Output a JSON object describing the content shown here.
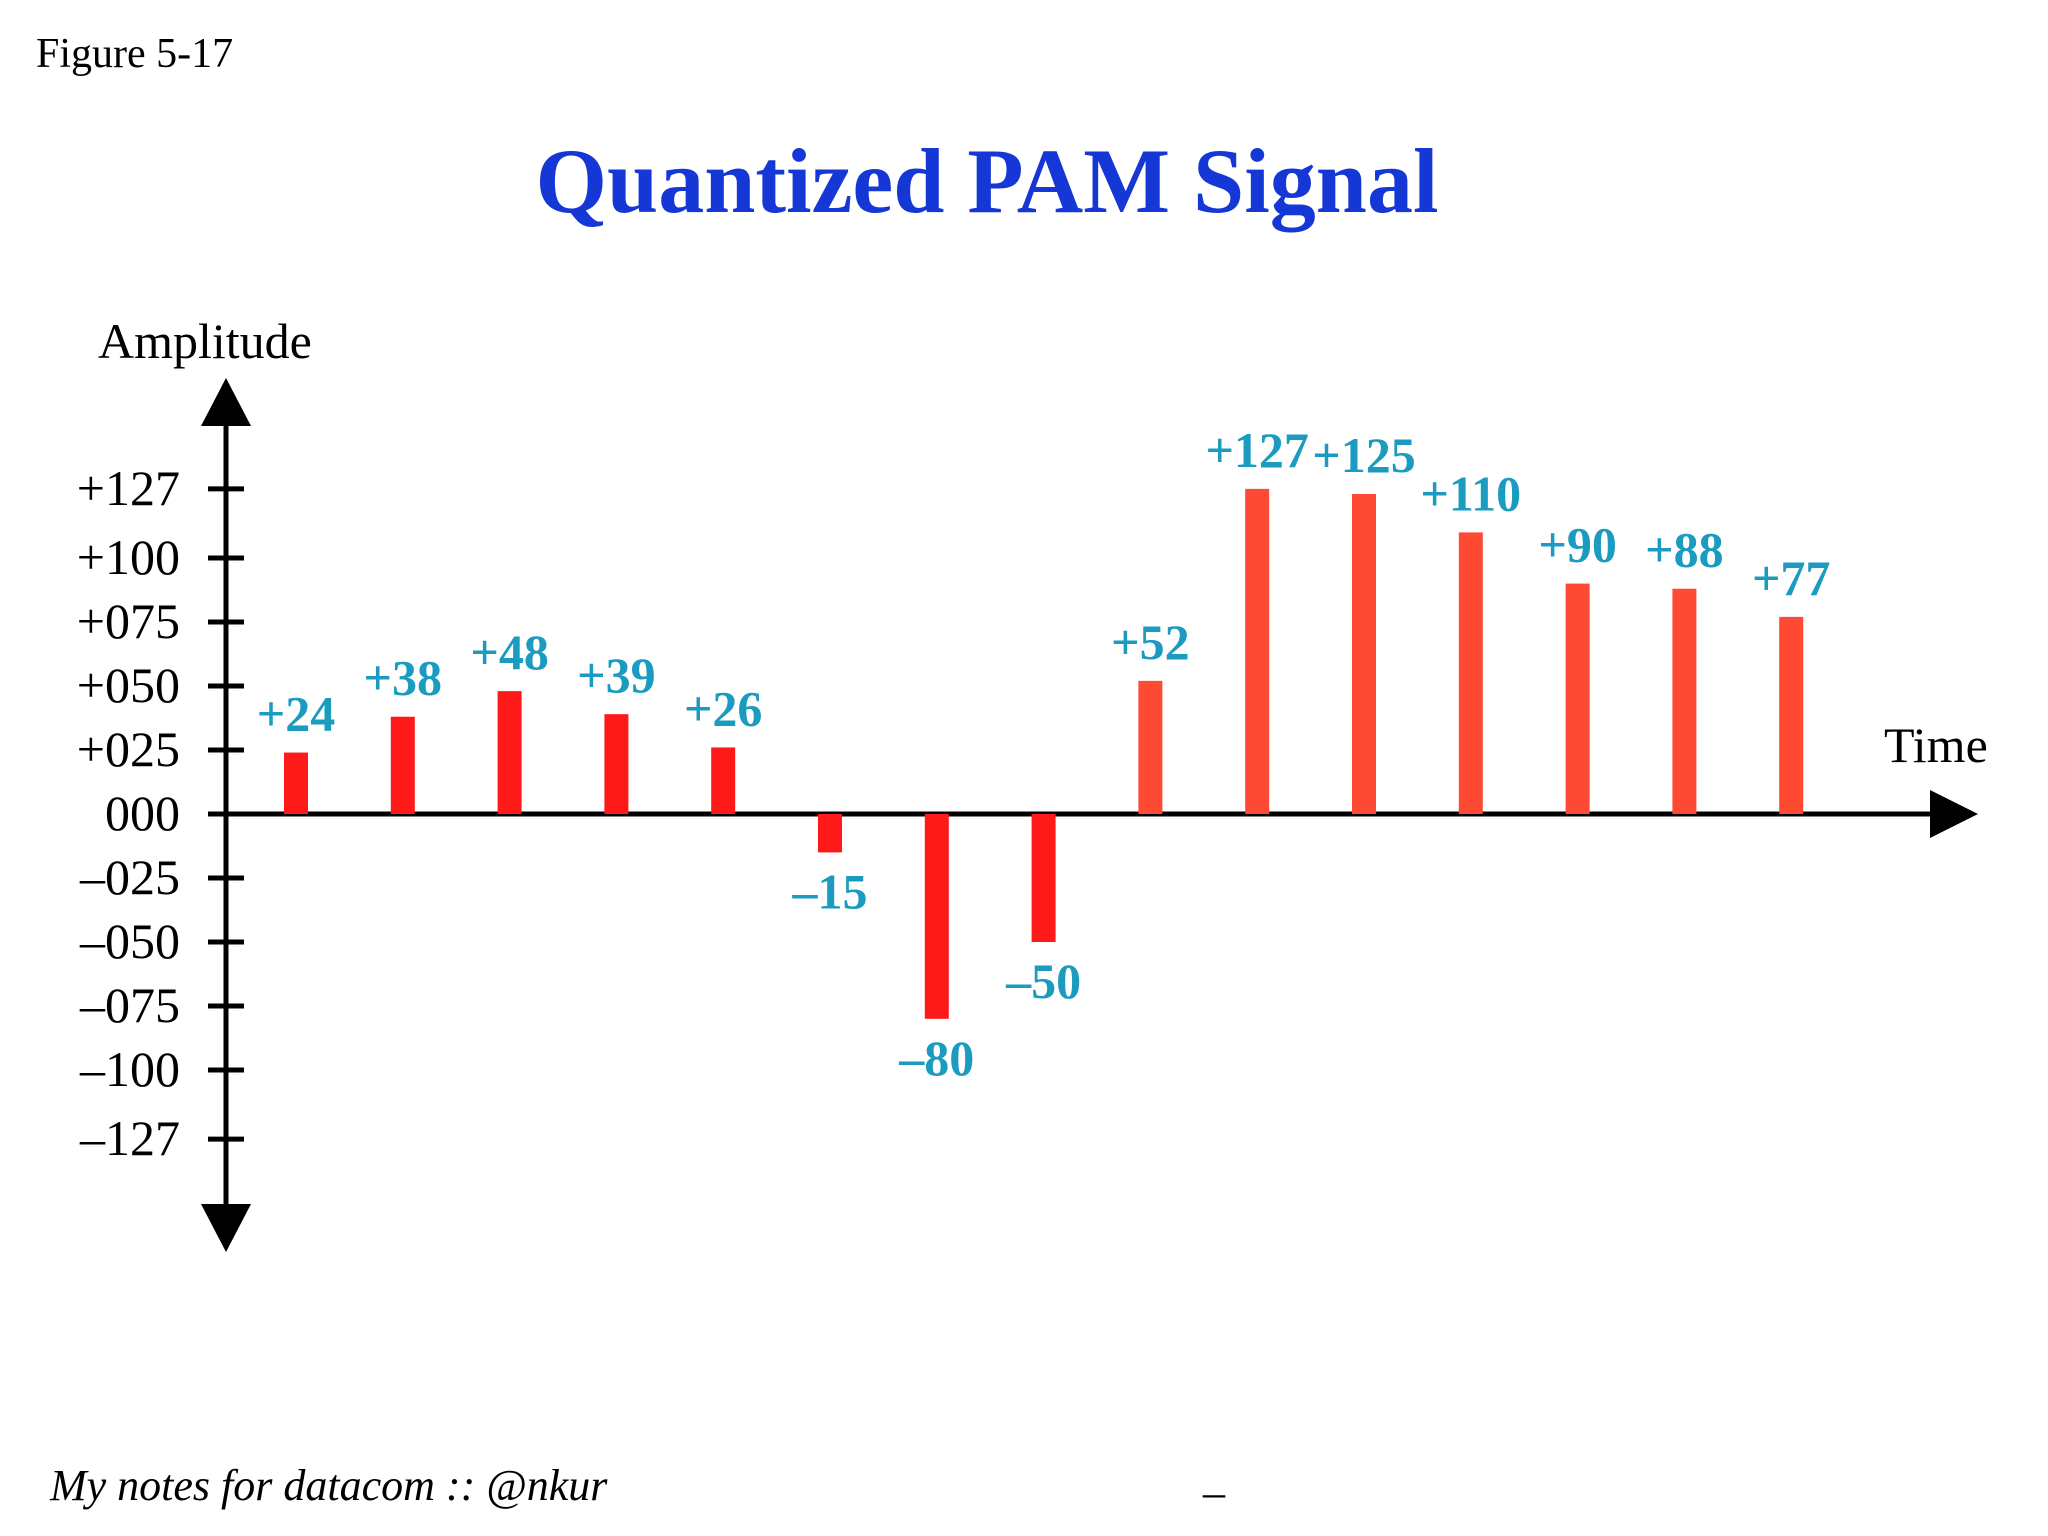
{
  "figure_label": "Figure 5-17",
  "footer_note": "My notes for datacom :: @nkur",
  "footer_dash": "_",
  "colors": {
    "title": "#1537d6",
    "bar_solid": "#ff1a1a",
    "bar_dotted": "#ff4a33",
    "data_label": "#1a9bbf",
    "axis": "#000000"
  },
  "chart_data": {
    "type": "bar",
    "title": "Quantized PAM Signal",
    "xlabel": "Time",
    "ylabel": "Amplitude",
    "ylim": [
      -127,
      127
    ],
    "y_ticks": [
      {
        "value": 127,
        "label": "+127"
      },
      {
        "value": 100,
        "label": "+100"
      },
      {
        "value": 75,
        "label": "+075"
      },
      {
        "value": 50,
        "label": "+050"
      },
      {
        "value": 25,
        "label": "+025"
      },
      {
        "value": 0,
        "label": "000"
      },
      {
        "value": -25,
        "label": "–025"
      },
      {
        "value": -50,
        "label": "–050"
      },
      {
        "value": -75,
        "label": "–075"
      },
      {
        "value": -100,
        "label": "–100"
      },
      {
        "value": -127,
        "label": "–127"
      }
    ],
    "values": [
      24,
      38,
      48,
      39,
      26,
      -15,
      -80,
      -50,
      52,
      127,
      125,
      110,
      90,
      88,
      77
    ],
    "labels": [
      "+24",
      "+38",
      "+48",
      "+39",
      "+26",
      "–15",
      "–80",
      "–50",
      "+52",
      "+127",
      "+125",
      "+110",
      "+90",
      "+88",
      "+77"
    ],
    "grid": false,
    "legend": "none"
  }
}
